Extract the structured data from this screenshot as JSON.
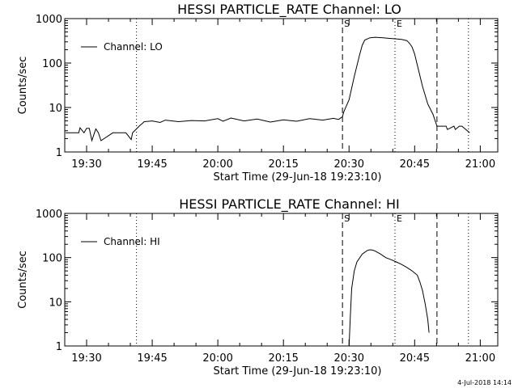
{
  "stamp": "4-Jul-2018 14:14",
  "chart_data": [
    {
      "type": "line",
      "title": "HESSI PARTICLE_RATE Channel: LO",
      "xlabel": "Start Time (29-Jun-18 19:23:10)",
      "ylabel": "Counts/sec",
      "xlim": [
        19.4167,
        21.0667
      ],
      "ylim": [
        1,
        1000
      ],
      "yscale": "log",
      "xticks": [
        {
          "t": 19.5,
          "label": "19:30"
        },
        {
          "t": 19.75,
          "label": "19:45"
        },
        {
          "t": 20.0,
          "label": "20:00"
        },
        {
          "t": 20.25,
          "label": "20:15"
        },
        {
          "t": 20.5,
          "label": "20:30"
        },
        {
          "t": 20.75,
          "label": "20:45"
        },
        {
          "t": 21.0,
          "label": "21:00"
        }
      ],
      "yticks": [
        {
          "v": 1,
          "label": "1"
        },
        {
          "v": 10,
          "label": "10"
        },
        {
          "v": 100,
          "label": "100"
        },
        {
          "v": 1000,
          "label": "1000"
        }
      ],
      "legend": {
        "label": "Channel: LO",
        "position": "top-left"
      },
      "vlines": [
        {
          "t": 19.69,
          "style": "dotted",
          "label": ""
        },
        {
          "t": 20.475,
          "style": "dashed",
          "label": "S"
        },
        {
          "t": 20.675,
          "style": "dotted",
          "label": "E"
        },
        {
          "t": 20.835,
          "style": "dashed",
          "label": ""
        },
        {
          "t": 20.955,
          "style": "dotted",
          "label": ""
        }
      ],
      "series": [
        {
          "name": "Channel: LO",
          "x": [
            19.42,
            19.47,
            19.475,
            19.49,
            19.5,
            19.51,
            19.52,
            19.53,
            19.535,
            19.545,
            19.555,
            19.6,
            19.65,
            19.67,
            19.675,
            19.69,
            19.7,
            19.72,
            19.75,
            19.78,
            19.8,
            19.85,
            19.9,
            19.95,
            20.0,
            20.02,
            20.05,
            20.1,
            20.15,
            20.2,
            20.25,
            20.3,
            20.35,
            20.4,
            20.44,
            20.46,
            20.475,
            20.48,
            20.5,
            20.52,
            20.54,
            20.55,
            20.56,
            20.58,
            20.6,
            20.63,
            20.65,
            20.68,
            20.7,
            20.72,
            20.73,
            20.74,
            20.75,
            20.76,
            20.78,
            20.8,
            20.82,
            20.835,
            20.85,
            20.87,
            20.875,
            20.9,
            20.905,
            20.92,
            20.93,
            20.96
          ],
          "y": [
            2.7,
            2.7,
            3.5,
            2.7,
            3.4,
            3.4,
            1.8,
            2.7,
            3.3,
            2.7,
            1.8,
            2.7,
            2.7,
            1.9,
            2.7,
            3.3,
            3.8,
            4.8,
            5.0,
            4.6,
            5.2,
            4.8,
            5.1,
            5.0,
            5.6,
            4.9,
            5.8,
            5.0,
            5.5,
            4.7,
            5.3,
            4.9,
            5.6,
            5.2,
            5.7,
            5.4,
            6.2,
            8.0,
            15,
            50,
            150,
            250,
            330,
            370,
            380,
            370,
            360,
            350,
            340,
            320,
            280,
            230,
            160,
            90,
            30,
            12,
            7,
            3.8,
            3.8,
            3.8,
            3.2,
            3.8,
            3.2,
            3.8,
            3.8,
            2.7
          ]
        }
      ]
    },
    {
      "type": "line",
      "title": "HESSI PARTICLE_RATE Channel: HI",
      "xlabel": "Start Time (29-Jun-18 19:23:10)",
      "ylabel": "Counts/sec",
      "xlim": [
        19.4167,
        21.0667
      ],
      "ylim": [
        1,
        1000
      ],
      "yscale": "log",
      "xticks": [
        {
          "t": 19.5,
          "label": "19:30"
        },
        {
          "t": 19.75,
          "label": "19:45"
        },
        {
          "t": 20.0,
          "label": "20:00"
        },
        {
          "t": 20.25,
          "label": "20:15"
        },
        {
          "t": 20.5,
          "label": "20:30"
        },
        {
          "t": 20.75,
          "label": "20:45"
        },
        {
          "t": 21.0,
          "label": "21:00"
        }
      ],
      "yticks": [
        {
          "v": 1,
          "label": "1"
        },
        {
          "v": 10,
          "label": "10"
        },
        {
          "v": 100,
          "label": "100"
        },
        {
          "v": 1000,
          "label": "1000"
        }
      ],
      "legend": {
        "label": "Channel: HI",
        "position": "top-left"
      },
      "vlines": [
        {
          "t": 19.69,
          "style": "dotted",
          "label": ""
        },
        {
          "t": 20.475,
          "style": "dashed",
          "label": "S"
        },
        {
          "t": 20.675,
          "style": "dotted",
          "label": "E"
        },
        {
          "t": 20.835,
          "style": "dashed",
          "label": ""
        },
        {
          "t": 20.955,
          "style": "dotted",
          "label": ""
        }
      ],
      "series": [
        {
          "name": "Channel: HI",
          "x": [
            20.5,
            20.505,
            20.51,
            20.52,
            20.53,
            20.55,
            20.57,
            20.58,
            20.59,
            20.6,
            20.62,
            20.64,
            20.66,
            20.68,
            20.7,
            20.72,
            20.74,
            20.76,
            20.77,
            20.78,
            20.79,
            20.8,
            20.805
          ],
          "y": [
            1,
            5,
            20,
            50,
            80,
            120,
            145,
            150,
            148,
            140,
            120,
            100,
            90,
            80,
            70,
            60,
            50,
            40,
            28,
            18,
            9,
            4,
            2
          ]
        }
      ]
    }
  ]
}
